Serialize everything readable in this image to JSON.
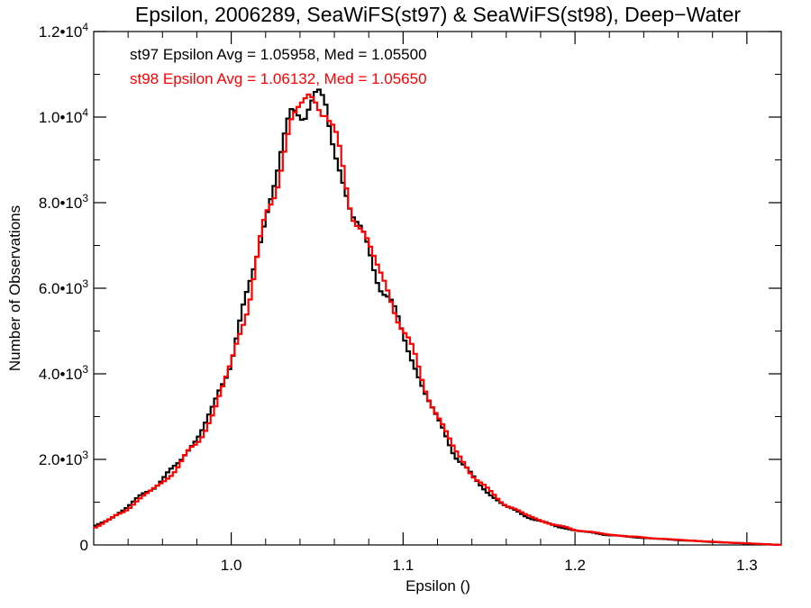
{
  "chart_data": {
    "type": "line",
    "title": "Epsilon, 2006289, SeaWiFS(st97) & SeaWiFS(st98), Deep−Water",
    "xlabel": "Epsilon ()",
    "ylabel": "Number of Observations",
    "xlim": [
      0.92,
      1.32
    ],
    "ylim": [
      0,
      12000
    ],
    "x_ticks": [
      {
        "value": 1.0,
        "label": "1.0"
      },
      {
        "value": 1.1,
        "label": "1.1"
      },
      {
        "value": 1.2,
        "label": "1.2"
      },
      {
        "value": 1.3,
        "label": "1.3"
      }
    ],
    "y_ticks": [
      {
        "value": 0,
        "mant": "0",
        "exp": ""
      },
      {
        "value": 2000,
        "mant": "2.0•10",
        "exp": "3"
      },
      {
        "value": 4000,
        "mant": "4.0•10",
        "exp": "3"
      },
      {
        "value": 6000,
        "mant": "6.0•10",
        "exp": "3"
      },
      {
        "value": 8000,
        "mant": "8.0•10",
        "exp": "3"
      },
      {
        "value": 10000,
        "mant": "1.0•10",
        "exp": "4"
      },
      {
        "value": 12000,
        "mant": "1.2•10",
        "exp": "4"
      }
    ],
    "grid": false,
    "annotations": [
      {
        "text": "st97 Epsilon Avg = 1.05958, Med = 1.05500",
        "color": "#000000"
      },
      {
        "text": "st98 Epsilon Avg = 1.06132, Med = 1.05650",
        "color": "#ff0000"
      }
    ],
    "series": [
      {
        "color": "#000000",
        "x": [
          0.92,
          0.93,
          0.94,
          0.95,
          0.96,
          0.97,
          0.98,
          0.99,
          1.0,
          1.01,
          1.02,
          1.03,
          1.035,
          1.04,
          1.045,
          1.05,
          1.055,
          1.06,
          1.07,
          1.08,
          1.09,
          1.1,
          1.11,
          1.12,
          1.13,
          1.14,
          1.15,
          1.16,
          1.17,
          1.18,
          1.19,
          1.2,
          1.22,
          1.24,
          1.26,
          1.28,
          1.3,
          1.32
        ],
        "y": [
          420,
          620,
          900,
          1220,
          1520,
          1950,
          2500,
          3200,
          4400,
          5900,
          7700,
          9300,
          9900,
          10250,
          10450,
          10350,
          10150,
          9300,
          7800,
          6800,
          5900,
          4900,
          3850,
          2900,
          2150,
          1600,
          1200,
          900,
          700,
          550,
          430,
          340,
          230,
          165,
          115,
          70,
          35,
          0
        ]
      },
      {
        "color": "#ff0000",
        "x": [
          0.92,
          0.93,
          0.94,
          0.95,
          0.96,
          0.97,
          0.98,
          0.99,
          1.0,
          1.01,
          1.02,
          1.03,
          1.035,
          1.04,
          1.045,
          1.05,
          1.055,
          1.06,
          1.07,
          1.08,
          1.09,
          1.1,
          1.11,
          1.12,
          1.13,
          1.14,
          1.15,
          1.16,
          1.17,
          1.18,
          1.19,
          1.2,
          1.22,
          1.24,
          1.26,
          1.28,
          1.3,
          1.32
        ],
        "y": [
          400,
          600,
          860,
          1170,
          1460,
          1870,
          2400,
          3080,
          4250,
          5700,
          7500,
          9150,
          9800,
          10200,
          10450,
          10450,
          10250,
          9450,
          7950,
          6950,
          6050,
          5050,
          4000,
          3000,
          2230,
          1660,
          1250,
          940,
          730,
          570,
          450,
          355,
          240,
          172,
          120,
          74,
          38,
          0
        ]
      }
    ]
  }
}
